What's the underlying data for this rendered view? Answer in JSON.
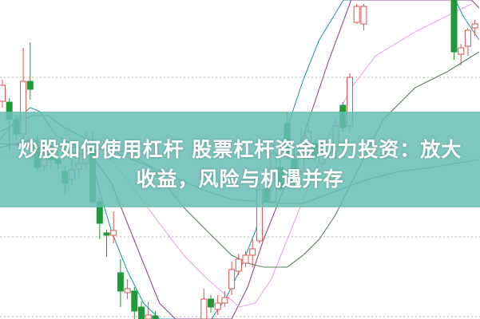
{
  "title_line1": "炒股如何使用杠杆 股票杠杆资金助力投资：放大",
  "title_line2": "收益，风险与机遇并存",
  "colors": {
    "up": "#d9534f",
    "down": "#1e9a3a",
    "neutral": "#7a7a7a",
    "banner": "#68beb4",
    "grid": "#b0b0b0"
  },
  "chart_data": {
    "type": "candlestick",
    "ylim": [
      0,
      400
    ],
    "grid": true,
    "candles": [
      {
        "i": 0,
        "o": 273,
        "c": 293,
        "h": 300,
        "l": 265
      },
      {
        "i": 1,
        "o": 272,
        "c": 250,
        "h": 277,
        "l": 210
      },
      {
        "i": 2,
        "o": 250,
        "c": 232,
        "h": 257,
        "l": 225
      },
      {
        "i": 3,
        "o": 232,
        "c": 298,
        "h": 340,
        "l": 220
      },
      {
        "i": 4,
        "o": 298,
        "c": 288,
        "h": 347,
        "l": 275
      },
      {
        "i": 5,
        "o": 215,
        "c": 190,
        "h": 230,
        "l": 185
      },
      {
        "i": 6,
        "o": 192,
        "c": 210,
        "h": 220,
        "l": 185
      },
      {
        "i": 7,
        "o": 210,
        "c": 200,
        "h": 215,
        "l": 188
      },
      {
        "i": 8,
        "o": 200,
        "c": 195,
        "h": 210,
        "l": 187
      },
      {
        "i": 9,
        "o": 185,
        "c": 170,
        "h": 192,
        "l": 155
      },
      {
        "i": 10,
        "o": 175,
        "c": 187,
        "h": 200,
        "l": 168
      },
      {
        "i": 11,
        "o": 188,
        "c": 195,
        "h": 205,
        "l": 178
      },
      {
        "i": 12,
        "o": 195,
        "c": 215,
        "h": 235,
        "l": 190
      },
      {
        "i": 13,
        "o": 212,
        "c": 147,
        "h": 235,
        "l": 145
      },
      {
        "i": 14,
        "o": 147,
        "c": 120,
        "h": 152,
        "l": 100
      },
      {
        "i": 15,
        "o": 108,
        "c": 105,
        "h": 112,
        "l": 78
      },
      {
        "i": 16,
        "o": 105,
        "c": 111,
        "h": 135,
        "l": 95
      },
      {
        "i": 17,
        "o": 58,
        "c": 35,
        "h": 75,
        "l": 15
      },
      {
        "i": 18,
        "o": 33,
        "c": 38,
        "h": 50,
        "l": 25
      },
      {
        "i": 19,
        "o": 35,
        "c": 10,
        "h": 40,
        "l": 0
      },
      {
        "i": 20,
        "o": 15,
        "c": 0,
        "h": 22,
        "l": 0
      },
      {
        "i": 21,
        "o": 0,
        "c": 5,
        "h": 22,
        "l": 0
      },
      {
        "i": 22,
        "o": 4,
        "c": 0,
        "h": 10,
        "l": 0
      },
      {
        "i": 29,
        "o": 0,
        "c": 25,
        "h": 38,
        "l": 0
      },
      {
        "i": 30,
        "o": 25,
        "c": 15,
        "h": 30,
        "l": 8
      },
      {
        "i": 31,
        "o": 12,
        "c": 20,
        "h": 30,
        "l": 5
      },
      {
        "i": 32,
        "o": 20,
        "c": 27,
        "h": 35,
        "l": 15
      },
      {
        "i": 33,
        "o": 38,
        "c": 62,
        "h": 72,
        "l": 30
      },
      {
        "i": 34,
        "o": 60,
        "c": 75,
        "h": 82,
        "l": 55
      },
      {
        "i": 35,
        "o": 70,
        "c": 80,
        "h": 85,
        "l": 65
      },
      {
        "i": 36,
        "o": 80,
        "c": 88,
        "h": 100,
        "l": 65
      },
      {
        "i": 37,
        "o": 98,
        "c": 162,
        "h": 170,
        "l": 95
      },
      {
        "i": 38,
        "o": 163,
        "c": 147,
        "h": 170,
        "l": 145
      },
      {
        "i": 39,
        "o": 147,
        "c": 207,
        "h": 220,
        "l": 145
      },
      {
        "i": 40,
        "o": 190,
        "c": 163,
        "h": 200,
        "l": 160
      },
      {
        "i": 41,
        "o": 245,
        "c": 205,
        "h": 260,
        "l": 200
      },
      {
        "i": 42,
        "o": 200,
        "c": 172,
        "h": 215,
        "l": 168
      },
      {
        "i": 43,
        "o": 185,
        "c": 220,
        "h": 240,
        "l": 180
      },
      {
        "i": 44,
        "o": 215,
        "c": 235,
        "h": 245,
        "l": 200
      },
      {
        "i": 45,
        "o": 220,
        "c": 205,
        "h": 225,
        "l": 195
      },
      {
        "i": 46,
        "o": 195,
        "c": 210,
        "h": 225,
        "l": 190
      },
      {
        "i": 48,
        "o": 210,
        "c": 242,
        "h": 250,
        "l": 200
      },
      {
        "i": 49,
        "o": 268,
        "c": 240,
        "h": 272,
        "l": 235
      },
      {
        "i": 50,
        "o": 242,
        "c": 303,
        "h": 308,
        "l": 235
      },
      {
        "i": 51,
        "o": 372,
        "c": 392,
        "h": 395,
        "l": 370
      },
      {
        "i": 52,
        "o": 370,
        "c": 392,
        "h": 395,
        "l": 362
      },
      {
        "i": 65,
        "o": 400,
        "c": 335,
        "h": 400,
        "l": 325
      },
      {
        "i": 66,
        "o": 332,
        "c": 340,
        "h": 345,
        "l": 318
      },
      {
        "i": 67,
        "o": 342,
        "c": 362,
        "h": 365,
        "l": 330
      },
      {
        "i": 68,
        "o": 365,
        "c": 370,
        "h": 375,
        "l": 355
      }
    ],
    "moving_averages": [
      {
        "color": "#2e9aa6",
        "points": [
          [
            -0.3,
            225
          ],
          [
            2,
            250
          ],
          [
            4,
            265
          ],
          [
            5.4,
            260
          ],
          [
            7.7,
            230
          ],
          [
            11.1,
            215
          ],
          [
            12.9,
            200
          ],
          [
            14,
            160
          ],
          [
            15.7,
            110
          ],
          [
            18,
            60
          ],
          [
            20.3,
            20
          ],
          [
            22.6,
            0
          ],
          [
            30.1,
            0
          ],
          [
            32.4,
            30
          ],
          [
            34.1,
            60
          ],
          [
            36.4,
            110
          ],
          [
            38.7,
            180
          ],
          [
            41,
            240
          ],
          [
            43.3,
            300
          ],
          [
            45.6,
            350
          ],
          [
            49.1,
            400
          ],
          [
            65.2,
            400
          ],
          [
            66.3,
            380
          ],
          [
            68.6,
            350
          ]
        ]
      },
      {
        "color": "#8a4e8a",
        "points": [
          [
            -0.3,
            215
          ],
          [
            4.3,
            225
          ],
          [
            8.9,
            210
          ],
          [
            12.9,
            205
          ],
          [
            15.7,
            170
          ],
          [
            18,
            120
          ],
          [
            20.3,
            70
          ],
          [
            22.6,
            20
          ],
          [
            24.9,
            0
          ],
          [
            33,
            0
          ],
          [
            35.3,
            40
          ],
          [
            37.6,
            100
          ],
          [
            39.9,
            150
          ],
          [
            42.2,
            200
          ],
          [
            44.5,
            260
          ],
          [
            46.8,
            320
          ],
          [
            50.2,
            400
          ],
          [
            67.5,
            400
          ],
          [
            68.6,
            390
          ]
        ]
      },
      {
        "color": "#e6a6e6",
        "points": [
          [
            -0.3,
            220
          ],
          [
            6.6,
            215
          ],
          [
            15.7,
            200
          ],
          [
            19.2,
            160
          ],
          [
            22.6,
            120
          ],
          [
            26.1,
            80
          ],
          [
            29.5,
            50
          ],
          [
            34.1,
            15
          ],
          [
            36.4,
            20
          ],
          [
            38.7,
            50
          ],
          [
            41,
            100
          ],
          [
            43.3,
            150
          ],
          [
            45.6,
            200
          ],
          [
            47.9,
            250
          ],
          [
            50.2,
            290
          ],
          [
            53.7,
            330
          ],
          [
            59.4,
            360
          ],
          [
            64,
            380
          ],
          [
            67.5,
            395
          ]
        ]
      },
      {
        "color": "#5b7f5b",
        "points": [
          [
            -0.3,
            220
          ],
          [
            11.1,
            215
          ],
          [
            18,
            210
          ],
          [
            21.5,
            190
          ],
          [
            26.1,
            140
          ],
          [
            29.5,
            110
          ],
          [
            33,
            80
          ],
          [
            35.3,
            70
          ],
          [
            37.6,
            65
          ],
          [
            41,
            65
          ],
          [
            43.3,
            80
          ],
          [
            45.6,
            100
          ],
          [
            47.9,
            130
          ],
          [
            50.2,
            170
          ],
          [
            52.5,
            210
          ],
          [
            54.8,
            250
          ],
          [
            59.4,
            290
          ],
          [
            64,
            310
          ],
          [
            68.6,
            335
          ]
        ]
      },
      {
        "color": "#3b8e98",
        "points": [
          [
            -0.3,
            235
          ],
          [
            4.3,
            255
          ],
          [
            6.6,
            255
          ],
          [
            8.9,
            240
          ],
          [
            14.6,
            215
          ],
          [
            21.5,
            190
          ],
          [
            29.5,
            160
          ],
          [
            33,
            150
          ],
          [
            39.9,
            145
          ],
          [
            43.3,
            145
          ],
          [
            47.9,
            160
          ],
          [
            52.5,
            175
          ],
          [
            57.1,
            185
          ],
          [
            61.7,
            190
          ],
          [
            65.2,
            195
          ],
          [
            68.6,
            200
          ]
        ]
      }
    ]
  }
}
